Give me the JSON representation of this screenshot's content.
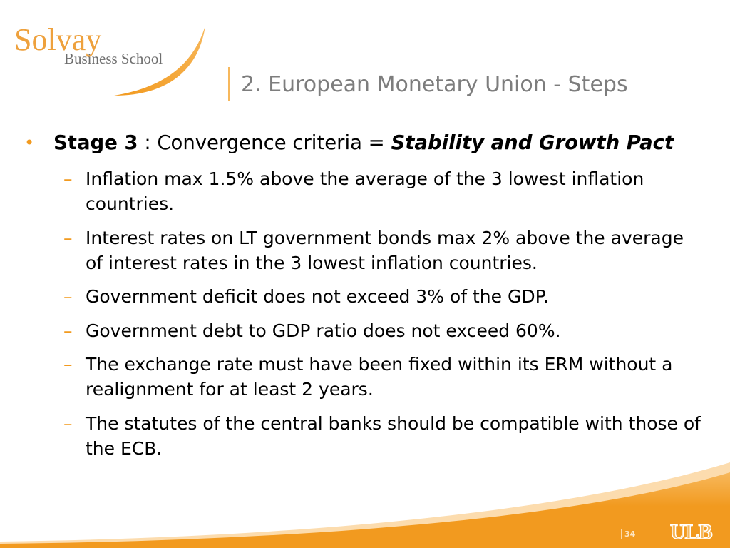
{
  "slide": {
    "logo": {
      "name": "Solvay",
      "tagline": "Business School"
    },
    "title": "2. European Monetary Union - Steps",
    "bullet": {
      "marker": "•",
      "label": "Stage 3",
      "text": ": Convergence criteria =",
      "emphasis": "Stability and Growth Pact"
    },
    "sub_bullets": [
      {
        "marker": "–",
        "lines": [
          "Inflation max 1.5% above the average of the 3 lowest inflation",
          "countries."
        ]
      },
      {
        "marker": "–",
        "lines": [
          "Interest rates on LT government bonds max 2% above the average",
          "of interest rates in the 3 lowest inflation countries."
        ]
      },
      {
        "marker": "–",
        "lines": [
          "Government deficit does not exceed 3% of the GDP."
        ]
      },
      {
        "marker": "–",
        "lines": [
          "Government debt to GDP ratio does not exceed 60%."
        ]
      },
      {
        "marker": "–",
        "lines": [
          "The exchange rate must have been fixed within its ERM without a",
          "realignment for at least 2 years."
        ]
      },
      {
        "marker": "–",
        "lines": [
          "The statutes of the central banks should be compatible with those of",
          "the ECB."
        ]
      }
    ],
    "footer": {
      "page_number": "34",
      "institution_logo": "ULB"
    }
  },
  "icons": {
    "logo_mark": "swoosh-icon",
    "list_bullet": "bullet-icon",
    "sub_bullet": "dash-icon",
    "footer_decoration": "wave-decoration"
  },
  "colors": {
    "accent": "#f29a1f",
    "accent_light": "#f7b85c",
    "accent_pale": "#fcdcae",
    "logo_orange": "#eea13d",
    "logo_gray": "#6e6e6e",
    "title": "#7d7d7d",
    "body_text": "#000000",
    "page_number": "#fde6c4",
    "background": "#ffffff"
  }
}
